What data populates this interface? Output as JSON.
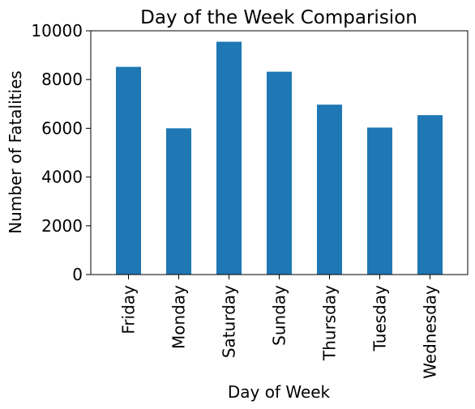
{
  "chart_data": {
    "type": "bar",
    "title": "Day of the Week Comparision",
    "xlabel": "Day of Week",
    "ylabel": "Number of Fatalities",
    "categories": [
      "Friday",
      "Monday",
      "Saturday",
      "Sunday",
      "Thursday",
      "Tuesday",
      "Wednesday"
    ],
    "values": [
      8520,
      6000,
      9550,
      8320,
      6970,
      6030,
      6540
    ],
    "ylim": [
      0,
      10000
    ],
    "yticks": [
      0,
      2000,
      4000,
      6000,
      8000,
      10000
    ],
    "grid": false,
    "legend": "none",
    "bar_color": "#1f77b4"
  }
}
